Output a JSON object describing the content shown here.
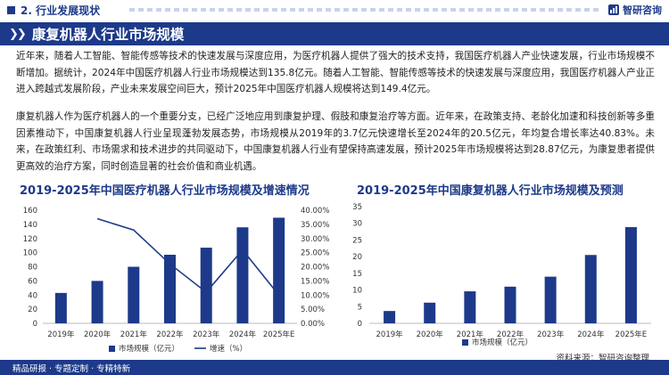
{
  "header": {
    "section": "2. 行业发展现状",
    "logo_text": "智研咨询",
    "logo_icon": "zhiyan-logo-icon"
  },
  "title": "康复机器人行业市场规模",
  "paragraphs": [
    "近年来，随着人工智能、智能传感等技术的快速发展与深度应用，为医疗机器人提供了强大的技术支持，我国医疗机器人产业快速发展，行业市场规模不断增加。据统计，2024年中国医疗机器人行业市场规模达到135.8亿元。随着人工智能、智能传感等技术的快速发展与深度应用，我国医疗机器人产业正进入跨越式发展阶段，产业未来发展空间巨大，预计2025年中国医疗机器人规模将达到149.4亿元。",
    "康复机器人作为医疗机器人的一个重要分支，已经广泛地应用到康复护理、假肢和康复治疗等方面。近年来，在政策支持、老龄化加速和科技创新等多重因素推动下，中国康复机器人行业呈现蓬勃发展态势，市场规模从2019年的3.7亿元快速增长至2024年的20.5亿元，年均复合增长率达40.83%。未来，在政策红利、市场需求和技术进步的共同驱动下，中国康复机器人行业有望保持高速发展，预计2025年市场规模将达到28.87亿元，为康复患者提供更高效的治疗方案，同时创造显著的社会价值和商业机遇。"
  ],
  "source": "资料来源：智研咨询整理",
  "footer": "精品研报 · 专题定制 · 专精特新",
  "colors": {
    "brand": "#1d3a8a",
    "bar": "#1d3a8a",
    "line": "#1d3a8a"
  },
  "chart_data": [
    {
      "type": "bar",
      "title": "2019-2025年中国医疗机器人行业市场规模及增速情况",
      "categories": [
        "2019年",
        "2020年",
        "2021年",
        "2022年",
        "2023年",
        "2024年",
        "2025年E"
      ],
      "series": [
        {
          "name": "市场规模（亿元）",
          "type": "bar",
          "axis": "left",
          "values": [
            43,
            60,
            80,
            97,
            107,
            135.8,
            149.4
          ]
        },
        {
          "name": "增速（%）",
          "type": "line",
          "axis": "right",
          "values": [
            null,
            37,
            33,
            21,
            11,
            26,
            10
          ]
        }
      ],
      "ylim": [
        0,
        160
      ],
      "yticks": [
        0,
        20,
        40,
        60,
        80,
        100,
        120,
        140,
        160
      ],
      "y2lim": [
        0,
        40
      ],
      "y2ticks": [
        "0.00%",
        "5.00%",
        "10.00%",
        "15.00%",
        "20.00%",
        "25.00%",
        "30.00%",
        "35.00%",
        "40.00%"
      ],
      "grid": false,
      "legend": "bottom"
    },
    {
      "type": "bar",
      "title": "2019-2025年中国康复机器人行业市场规模及预测",
      "categories": [
        "2019年",
        "2020年",
        "2021年",
        "2022年",
        "2023年",
        "2024年",
        "2025年E"
      ],
      "series": [
        {
          "name": "市场规模（亿元）",
          "values": [
            3.7,
            6.2,
            9.6,
            11,
            14,
            20.5,
            28.87
          ]
        }
      ],
      "ylim": [
        0,
        35
      ],
      "yticks": [
        0,
        5,
        10,
        15,
        20,
        25,
        30,
        35
      ],
      "grid": false,
      "legend": "bottom"
    }
  ]
}
